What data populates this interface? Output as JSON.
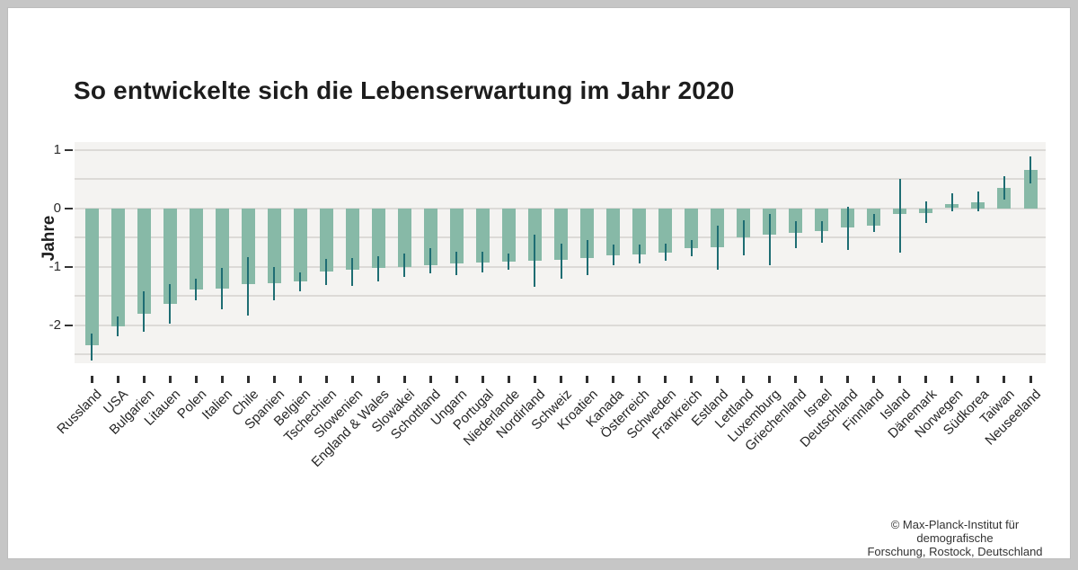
{
  "header": {
    "title": "So entwickelte sich die Lebenserwartung im Jahr 2020"
  },
  "attribution": {
    "line1": "© Max-Planck-Institut für demografische",
    "line2": "Forschung, Rostock, Deutschland"
  },
  "chart_data": {
    "type": "bar",
    "title": "So entwickelte sich die Lebenserwartung im Jahr 2020",
    "xlabel": "",
    "ylabel": "Jahre",
    "ylim": [
      -2.65,
      1.13
    ],
    "yticks": {
      "values": [
        1,
        0,
        -1,
        -2
      ],
      "labels": [
        "1",
        "0",
        "-1",
        "-2"
      ]
    },
    "gridlines": [
      1,
      0.5,
      0,
      -0.5,
      -1,
      -1.5,
      -2,
      -2.5
    ],
    "grid": "horizontal-only",
    "legend": "none",
    "error_bars": true,
    "categories": [
      "Russland",
      "USA",
      "Bulgarien",
      "Litauen",
      "Polen",
      "Italien",
      "Chile",
      "Spanien",
      "Belgien",
      "Tschechien",
      "Slowenien",
      "England & Wales",
      "Slowakei",
      "Schottland",
      "Ungarn",
      "Portugal",
      "Niederlande",
      "Nordirland",
      "Schweiz",
      "Kroatien",
      "Kanada",
      "Österreich",
      "Schweden",
      "Frankreich",
      "Estland",
      "Lettland",
      "Luxemburg",
      "Griechenland",
      "Israel",
      "Deutschland",
      "Finnland",
      "Island",
      "Dänemark",
      "Norwegen",
      "Südkorea",
      "Taiwan",
      "Neuseeland"
    ],
    "values": [
      -2.34,
      -2.02,
      -1.8,
      -1.64,
      -1.39,
      -1.37,
      -1.3,
      -1.28,
      -1.26,
      -1.09,
      -1.06,
      -1.03,
      -1.0,
      -0.97,
      -0.95,
      -0.93,
      -0.92,
      -0.9,
      -0.88,
      -0.85,
      -0.8,
      -0.79,
      -0.76,
      -0.69,
      -0.67,
      -0.5,
      -0.46,
      -0.42,
      -0.39,
      -0.33,
      -0.3,
      -0.1,
      -0.08,
      0.07,
      0.1,
      0.35,
      0.65
    ],
    "ci_low": [
      -2.61,
      -2.19,
      -2.12,
      -1.97,
      -1.57,
      -1.73,
      -1.84,
      -1.57,
      -1.43,
      -1.31,
      -1.33,
      -1.26,
      -1.18,
      -1.12,
      -1.15,
      -1.1,
      -1.05,
      -1.34,
      -1.2,
      -1.15,
      -0.97,
      -0.95,
      -0.9,
      -0.82,
      -1.05,
      -0.8,
      -0.98,
      -0.69,
      -0.6,
      -0.71,
      -0.4,
      -0.76,
      -0.25,
      -0.05,
      -0.06,
      0.14,
      0.42
    ],
    "ci_high": [
      -2.15,
      -1.86,
      -1.43,
      -1.3,
      -1.2,
      -1.02,
      -0.84,
      -1.0,
      -1.1,
      -0.87,
      -0.85,
      -0.83,
      -0.77,
      -0.68,
      -0.75,
      -0.75,
      -0.78,
      -0.45,
      -0.6,
      -0.55,
      -0.63,
      -0.62,
      -0.6,
      -0.55,
      -0.3,
      -0.2,
      -0.1,
      -0.23,
      -0.22,
      0.03,
      -0.1,
      0.5,
      0.11,
      0.25,
      0.29,
      0.55,
      0.88
    ],
    "colors": {
      "bar": "#87b9a7",
      "error_bar": "#1e6d73",
      "plot_background": "#f4f3f1",
      "gridline": "#dcdad7",
      "frame_background": "#c6c6c6",
      "text": "#1d1d1d"
    }
  }
}
